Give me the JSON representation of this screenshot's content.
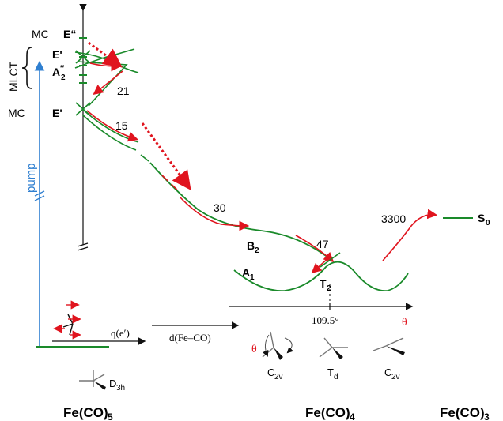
{
  "colors": {
    "green": "#1a8a2a",
    "red": "#e0141e",
    "blue": "#2f7fd0",
    "black": "#111111"
  },
  "states": {
    "mc_top_prefix": "MC",
    "mc_top": "E“",
    "e_prime_upper": "E'",
    "a2": "A",
    "a2_sup": "″",
    "a2_sub": "2",
    "mlct": "MLCT",
    "mc_bottom_prefix": "MC",
    "e_prime_lower": "E'",
    "b2": "B",
    "b2_sub": "2",
    "a1": "A",
    "a1_sub": "1",
    "t2": "T",
    "t2_sub": "2",
    "s0": "S",
    "s0_sub": "0"
  },
  "times": {
    "t1": "21",
    "t2": "15",
    "t3": "30",
    "t4": "47",
    "t5": "3300"
  },
  "pump_label": "pump",
  "axes": {
    "qe": "q(e′)",
    "dfeco": "d(Fe–CO)",
    "angle_value": "109.5°",
    "theta": "θ"
  },
  "geometries": {
    "d3h": "D",
    "d3h_sub": "3h",
    "c2v_a": "C",
    "c2v_a_sub": "2v",
    "td": "T",
    "td_sub": "d",
    "c2v_b": "C",
    "c2v_b_sub": "2v",
    "theta_mark": "θ"
  },
  "compounds": {
    "fe5": "Fe(CO)",
    "fe5_sub": "5",
    "fe4": "Fe(CO)",
    "fe4_sub": "4",
    "fe3": "Fe(CO)",
    "fe3_sub": "3"
  }
}
